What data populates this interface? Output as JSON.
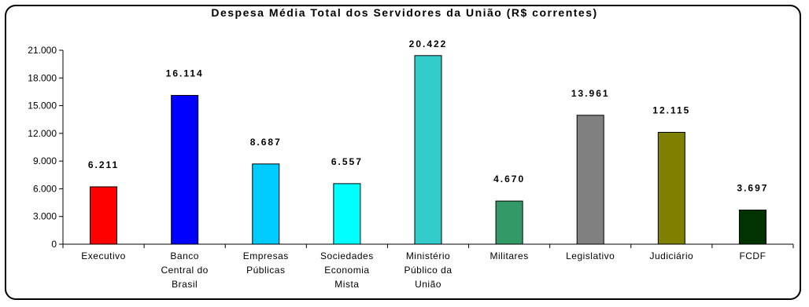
{
  "chart_data": {
    "type": "bar",
    "title": "Despesa Média Total dos Servidores da União (R$ correntes)",
    "categories": [
      [
        "Executivo"
      ],
      [
        "Banco",
        "Central do",
        "Brasil"
      ],
      [
        "Empresas",
        "Públicas"
      ],
      [
        "Sociedades",
        "Economia",
        "Mista"
      ],
      [
        "Ministério",
        "Público da",
        "União"
      ],
      [
        "Militares"
      ],
      [
        "Legislativo"
      ],
      [
        "Judiciário"
      ],
      [
        "FCDF"
      ]
    ],
    "values": [
      6211,
      16114,
      8687,
      6557,
      20422,
      4670,
      13961,
      12115,
      3697
    ],
    "value_labels": [
      "6.211",
      "16.114",
      "8.687",
      "6.557",
      "20.422",
      "4.670",
      "13.961",
      "12.115",
      "3.697"
    ],
    "colors": [
      "#ff0000",
      "#0000ff",
      "#00ccff",
      "#00ffff",
      "#33cccc",
      "#339966",
      "#808080",
      "#808000",
      "#003300"
    ],
    "ylim": [
      0,
      21000
    ],
    "yticks": [
      0,
      3000,
      6000,
      9000,
      12000,
      15000,
      18000,
      21000
    ],
    "ytick_labels": [
      "0",
      "3.000",
      "6.000",
      "9.000",
      "12.000",
      "15.000",
      "18.000",
      "21.000"
    ],
    "grid": false,
    "legend": "none"
  }
}
